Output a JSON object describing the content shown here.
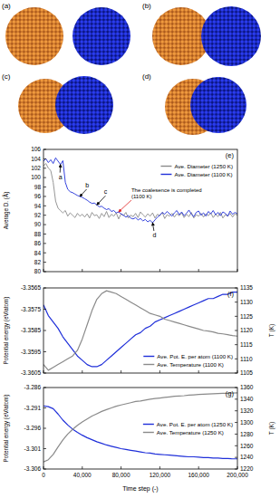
{
  "panels": {
    "labels": [
      "(a)",
      "(b)",
      "(c)",
      "(d)"
    ]
  },
  "chart_data": [
    {
      "type": "line",
      "title": "(e)",
      "ylabel": "Average D. (Å)",
      "x": [
        0,
        2500,
        5000,
        7500,
        10000,
        12500,
        15000,
        17500,
        20000,
        22500,
        25000,
        27500,
        30000,
        32500,
        35000,
        37500,
        40000,
        42500,
        45000,
        47500,
        50000,
        52500,
        55000,
        57500,
        60000,
        62500,
        65000,
        67500,
        70000,
        72500,
        75000,
        77500,
        80000,
        82500,
        85000,
        87500,
        90000,
        92500,
        95000,
        97500,
        100000,
        102500,
        105000,
        107500,
        110000,
        112500,
        115000,
        117500,
        120000,
        122500,
        125000,
        127500,
        130000,
        132500,
        135000,
        137500,
        140000,
        142500,
        145000,
        147500,
        150000,
        152500,
        155000,
        157500,
        160000,
        162500,
        165000,
        167500,
        170000,
        172500,
        175000,
        177500,
        180000,
        182500,
        185000,
        187500,
        190000,
        192500,
        195000,
        197500,
        200000
      ],
      "xlim": [
        0,
        200000
      ],
      "xticks": [
        0,
        40000,
        80000,
        120000,
        160000,
        200000
      ],
      "ylim": [
        80,
        106
      ],
      "yticks": [
        80,
        82,
        84,
        86,
        88,
        90,
        92,
        94,
        96,
        98,
        100,
        102,
        104,
        106
      ],
      "tick_labels": "y",
      "legend": "upper right",
      "series": [
        {
          "name": "Ave. Diameter (1250 K)",
          "color": "#8a8a8a",
          "values": [
            102.5,
            103,
            102,
            101.5,
            99,
            95,
            93.5,
            93,
            92.5,
            93,
            91.8,
            92.5,
            92,
            91.5,
            92.4,
            91.8,
            92.2,
            91.6,
            92.3,
            91.4,
            92.6,
            91.9,
            92.1,
            91.3,
            92.4,
            91.7,
            92.8,
            91.5,
            92.2,
            91.8,
            92.5,
            91.2,
            92.3,
            91.9,
            92.6,
            91.4,
            92.0,
            91.7,
            92.4,
            91.5,
            92.7,
            92.1,
            91.6,
            92.3,
            91.8,
            92.5,
            91.4,
            92.2,
            91.9,
            92.6,
            91.3,
            92.1,
            91.8,
            92.4,
            91.6,
            92.3,
            91.9,
            92.5,
            91.5,
            92.2,
            91.7,
            92.6,
            91.4,
            92.1,
            91.8,
            92.4,
            91.6,
            92.3,
            91.9,
            92.5,
            91.5,
            92.2,
            91.7,
            92.6,
            91.4,
            92.1,
            91.8,
            92.4,
            91.6,
            92.3,
            92.0
          ]
        },
        {
          "name": "Ave. Diameter (1100 K)",
          "color": "#1f2fd9",
          "values": [
            103.5,
            104,
            103.2,
            103.8,
            103,
            104.2,
            103.5,
            102.8,
            103.6,
            99,
            97.5,
            97,
            96.8,
            96.5,
            96.2,
            96,
            95.8,
            95.5,
            95.2,
            94.8,
            94.5,
            94.6,
            94.2,
            93.8,
            93.9,
            93.5,
            93.2,
            93.4,
            92.8,
            93,
            92.5,
            92.7,
            92.3,
            92,
            91.6,
            91.9,
            91.4,
            91.2,
            91.5,
            91,
            91.3,
            90.8,
            91.1,
            90.6,
            90.9,
            90.4,
            91,
            91.6,
            92,
            92.6,
            92.2,
            92.8,
            92.3,
            91.8,
            92.5,
            93,
            92.1,
            92.7,
            91.9,
            92.4,
            93.1,
            92.2,
            91.7,
            92.6,
            92.9,
            92,
            92.5,
            91.8,
            92.8,
            92.3,
            93,
            92.1,
            92.6,
            91.9,
            92.7,
            92.4,
            91.8,
            92.9,
            92.2,
            92.6,
            92.3
          ]
        }
      ],
      "annotations": [
        {
          "text": "a",
          "x": 17500,
          "y": 102.8
        },
        {
          "text": "b",
          "x": 37500,
          "y": 96
        },
        {
          "text": "c",
          "x": 55000,
          "y": 94.2
        },
        {
          "text": "d",
          "x": 112500,
          "y": 90.4
        },
        {
          "text": "The coalesence is completed (1100 K)",
          "x": 77500,
          "y": 92.7,
          "color": "#e02020"
        }
      ]
    },
    {
      "type": "line",
      "title": "(f)",
      "ylabel": "Potential energy (eV/atom)",
      "y2label": "T (K)",
      "x": [
        0,
        5000,
        10000,
        15000,
        20000,
        25000,
        30000,
        35000,
        40000,
        45000,
        50000,
        55000,
        60000,
        65000,
        70000,
        75000,
        80000,
        85000,
        90000,
        95000,
        100000,
        105000,
        110000,
        115000,
        120000,
        125000,
        130000,
        135000,
        140000,
        145000,
        150000,
        155000,
        160000,
        165000,
        170000,
        175000,
        180000,
        185000,
        190000,
        195000,
        200000
      ],
      "xlim": [
        0,
        200000
      ],
      "xticks": [
        0,
        40000,
        80000,
        120000,
        160000,
        200000
      ],
      "ylim": [
        -3.3605,
        -3.3565
      ],
      "yticks": [
        -3.3605,
        -3.3595,
        -3.3585,
        -3.3575,
        -3.3565
      ],
      "y2lim": [
        1105,
        1135
      ],
      "y2ticks": [
        1105,
        1110,
        1115,
        1120,
        1125,
        1130,
        1135
      ],
      "tick_labels": "y",
      "legend": "lower right",
      "series": [
        {
          "name": "Ave. Pot. E. per atom (1100 K)",
          "color": "#1f2fd9",
          "values": [
            -3.3573,
            -3.3578,
            -3.3581,
            -3.3584,
            -3.3588,
            -3.3591,
            -3.3594,
            -3.3597,
            -3.3599,
            -3.3601,
            -3.3602,
            -3.3602,
            -3.3601,
            -3.3599,
            -3.3597,
            -3.3595,
            -3.3593,
            -3.3591,
            -3.3589,
            -3.3587,
            -3.3586,
            -3.3584,
            -3.3583,
            -3.3581,
            -3.358,
            -3.3579,
            -3.3578,
            -3.3577,
            -3.3576,
            -3.3575,
            -3.3574,
            -3.3573,
            -3.3572,
            -3.3571,
            -3.357,
            -3.357,
            -3.3569,
            -3.3568,
            -3.3568,
            -3.3567,
            -3.3567
          ]
        },
        {
          "name": "Ave. Temperature (1100 K)",
          "color": "#8a8a8a",
          "axis": "y2",
          "values": [
            1108,
            1106,
            1107,
            1108,
            1109,
            1110,
            1111,
            1113,
            1117,
            1122,
            1127,
            1131,
            1133,
            1134,
            1133.5,
            1133,
            1132,
            1131,
            1130,
            1129,
            1128,
            1127,
            1126,
            1125.5,
            1125,
            1124,
            1123.5,
            1123,
            1122.5,
            1122,
            1121.5,
            1121,
            1120.5,
            1120,
            1119.8,
            1119.5,
            1119,
            1118.8,
            1118.5,
            1118.2,
            1118
          ]
        }
      ]
    },
    {
      "type": "line",
      "title": "(g)",
      "ylabel": "Potential energy (eV/atom)",
      "y2label": "T (K)",
      "xlabel": "Time step (-)",
      "x": [
        0,
        5000,
        10000,
        15000,
        20000,
        25000,
        30000,
        35000,
        40000,
        45000,
        50000,
        55000,
        60000,
        65000,
        70000,
        75000,
        80000,
        85000,
        90000,
        95000,
        100000,
        105000,
        110000,
        115000,
        120000,
        125000,
        130000,
        135000,
        140000,
        145000,
        150000,
        155000,
        160000,
        165000,
        170000,
        175000,
        180000,
        185000,
        190000,
        195000,
        200000
      ],
      "xlim": [
        0,
        200000
      ],
      "xticks": [
        0,
        {
          "value": 40000,
          "label": "40,000"
        },
        {
          "value": 80000,
          "label": "80,000"
        },
        {
          "value": 120000,
          "label": "120,000"
        },
        {
          "value": 160000,
          "label": "160,000"
        },
        {
          "value": 200000,
          "label": "200,000"
        }
      ],
      "ylim": [
        -3.306,
        -3.286
      ],
      "yticks": [
        -3.306,
        -3.301,
        -3.296,
        -3.291,
        -3.286
      ],
      "y2lim": [
        1220,
        1360
      ],
      "y2ticks": [
        1220,
        1240,
        1260,
        1280,
        1300,
        1320,
        1340,
        1360
      ],
      "tick_labels": true,
      "legend": "center right",
      "series": [
        {
          "name": "Ave. Pot. E. per atom (1250 K)",
          "color": "#1f2fd9",
          "values": [
            -3.2905,
            -3.2907,
            -3.2912,
            -3.2925,
            -3.294,
            -3.2952,
            -3.2962,
            -3.297,
            -3.2977,
            -3.2983,
            -3.2988,
            -3.2993,
            -3.2997,
            -3.3001,
            -3.3004,
            -3.3007,
            -3.301,
            -3.3012,
            -3.3014,
            -3.3016,
            -3.3018,
            -3.302,
            -3.3021,
            -3.3023,
            -3.3024,
            -3.3025,
            -3.3026,
            -3.3027,
            -3.3028,
            -3.3029,
            -3.303,
            -3.303,
            -3.3031,
            -3.3032,
            -3.3032,
            -3.3033,
            -3.3033,
            -3.3034,
            -3.3034,
            -3.3035,
            -3.3035
          ]
        },
        {
          "name": "Ave. Temperature (1250 K)",
          "color": "#8a8a8a",
          "axis": "y2",
          "values": [
            1232,
            1236,
            1245,
            1258,
            1270,
            1280,
            1288,
            1295,
            1301,
            1306,
            1311,
            1315,
            1319,
            1322,
            1325,
            1328,
            1330,
            1332,
            1334,
            1336,
            1337,
            1338.5,
            1340,
            1341,
            1342,
            1343,
            1344,
            1345,
            1345.5,
            1346,
            1347,
            1347.5,
            1348,
            1348.5,
            1349,
            1349.3,
            1349.6,
            1350,
            1350.2,
            1350.5,
            1350.8
          ]
        }
      ]
    }
  ]
}
